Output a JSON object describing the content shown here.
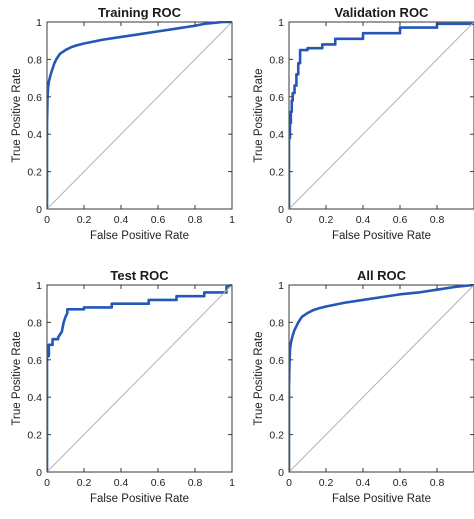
{
  "colors": {
    "roc_line": "#2457b8",
    "diagonal": "#b4b4b4"
  },
  "chart_data": [
    {
      "type": "line",
      "title": "Training ROC",
      "xlabel": "False Positive Rate",
      "ylabel": "True Positive Rate",
      "xlim": [
        0,
        1
      ],
      "ylim": [
        0,
        1
      ],
      "xticks": [
        0,
        0.2,
        0.4,
        0.6,
        0.8,
        1
      ],
      "xtick_labels": [
        "0",
        "0.2",
        "0.4",
        "0.6",
        "0.8",
        "1"
      ],
      "yticks": [
        0,
        0.2,
        0.4,
        0.6,
        0.8,
        1
      ],
      "ytick_labels": [
        "0",
        "0.2",
        "0.4",
        "0.6",
        "0.8",
        "1"
      ],
      "grid": false,
      "series": [
        {
          "x": [
            0,
            0,
            0.003,
            0.006,
            0.01,
            0.015,
            0.02,
            0.03,
            0.04,
            0.05,
            0.07,
            0.1,
            0.13,
            0.16,
            0.2,
            0.25,
            0.3,
            0.4,
            0.5,
            0.6,
            0.7,
            0.8,
            0.85,
            0.9,
            0.95,
            1
          ],
          "y": [
            0,
            0.45,
            0.6,
            0.65,
            0.68,
            0.7,
            0.72,
            0.75,
            0.78,
            0.8,
            0.83,
            0.85,
            0.865,
            0.875,
            0.885,
            0.895,
            0.905,
            0.92,
            0.935,
            0.95,
            0.965,
            0.98,
            0.99,
            0.995,
            1,
            1
          ]
        },
        {
          "x": [
            0,
            1
          ],
          "y": [
            0,
            1
          ]
        }
      ]
    },
    {
      "type": "line",
      "title": "Validation ROC",
      "xlabel": "False Positive Rate",
      "ylabel": "True Positive Rate",
      "xlim": [
        0,
        1
      ],
      "ylim": [
        0,
        1
      ],
      "xticks": [
        0,
        0.2,
        0.4,
        0.6,
        0.8
      ],
      "xtick_labels": [
        "0",
        "0.2",
        "0.4",
        "0.6",
        "0.8"
      ],
      "yticks": [
        0,
        0.2,
        0.4,
        0.6,
        0.8,
        1
      ],
      "ytick_labels": [
        "0",
        "0.2",
        "0.4",
        "0.6",
        "0.8",
        "1"
      ],
      "grid": false,
      "series": [
        {
          "x": [
            0,
            0,
            0.005,
            0.005,
            0.01,
            0.01,
            0.015,
            0.015,
            0.02,
            0.02,
            0.03,
            0.03,
            0.04,
            0.04,
            0.05,
            0.05,
            0.06,
            0.06,
            0.1,
            0.1,
            0.18,
            0.18,
            0.25,
            0.25,
            0.4,
            0.4,
            0.6,
            0.6,
            0.8,
            0.8,
            1
          ],
          "y": [
            0,
            0.38,
            0.38,
            0.46,
            0.46,
            0.52,
            0.52,
            0.58,
            0.58,
            0.62,
            0.62,
            0.66,
            0.66,
            0.72,
            0.72,
            0.78,
            0.78,
            0.85,
            0.85,
            0.86,
            0.86,
            0.88,
            0.88,
            0.91,
            0.91,
            0.94,
            0.94,
            0.97,
            0.97,
            0.99,
            0.99
          ]
        },
        {
          "x": [
            0,
            1
          ],
          "y": [
            0,
            1
          ]
        }
      ]
    },
    {
      "type": "line",
      "title": "Test ROC",
      "xlabel": "False Positive Rate",
      "ylabel": "True Positive Rate",
      "xlim": [
        0,
        1
      ],
      "ylim": [
        0,
        1
      ],
      "xticks": [
        0,
        0.2,
        0.4,
        0.6,
        0.8,
        1
      ],
      "xtick_labels": [
        "0",
        "0.2",
        "0.4",
        "0.6",
        "0.8",
        "1"
      ],
      "yticks": [
        0,
        0.2,
        0.4,
        0.6,
        0.8,
        1
      ],
      "ytick_labels": [
        "0",
        "0.2",
        "0.4",
        "0.6",
        "0.8",
        "1"
      ],
      "grid": false,
      "series": [
        {
          "x": [
            0,
            0,
            0.01,
            0.01,
            0.03,
            0.03,
            0.06,
            0.06,
            0.08,
            0.09,
            0.1,
            0.11,
            0.11,
            0.2,
            0.2,
            0.35,
            0.35,
            0.55,
            0.55,
            0.7,
            0.7,
            0.85,
            0.85,
            0.97,
            0.97,
            1
          ],
          "y": [
            0,
            0.62,
            0.62,
            0.68,
            0.68,
            0.71,
            0.71,
            0.72,
            0.75,
            0.8,
            0.83,
            0.85,
            0.87,
            0.87,
            0.88,
            0.88,
            0.9,
            0.9,
            0.92,
            0.92,
            0.94,
            0.94,
            0.96,
            0.96,
            0.99,
            1
          ]
        },
        {
          "x": [
            0,
            1
          ],
          "y": [
            0,
            1
          ]
        }
      ]
    },
    {
      "type": "line",
      "title": "All ROC",
      "xlabel": "False Positive Rate",
      "ylabel": "True Positive Rate",
      "xlim": [
        0,
        1
      ],
      "ylim": [
        0,
        1
      ],
      "xticks": [
        0,
        0.2,
        0.4,
        0.6,
        0.8
      ],
      "xtick_labels": [
        "0",
        "0.2",
        "0.4",
        "0.6",
        "0.8"
      ],
      "yticks": [
        0,
        0.2,
        0.4,
        0.6,
        0.8,
        1
      ],
      "ytick_labels": [
        "0",
        "0.2",
        "0.4",
        "0.6",
        "0.8",
        "1"
      ],
      "grid": false,
      "series": [
        {
          "x": [
            0,
            0,
            0.003,
            0.006,
            0.01,
            0.015,
            0.02,
            0.03,
            0.04,
            0.05,
            0.07,
            0.1,
            0.13,
            0.16,
            0.2,
            0.25,
            0.3,
            0.4,
            0.5,
            0.6,
            0.7,
            0.8,
            0.9,
            1
          ],
          "y": [
            0,
            0.45,
            0.6,
            0.66,
            0.69,
            0.71,
            0.73,
            0.76,
            0.78,
            0.8,
            0.83,
            0.85,
            0.865,
            0.875,
            0.885,
            0.895,
            0.905,
            0.92,
            0.935,
            0.95,
            0.96,
            0.975,
            0.99,
            1
          ]
        },
        {
          "x": [
            0,
            1
          ],
          "y": [
            0,
            1
          ]
        }
      ]
    }
  ]
}
